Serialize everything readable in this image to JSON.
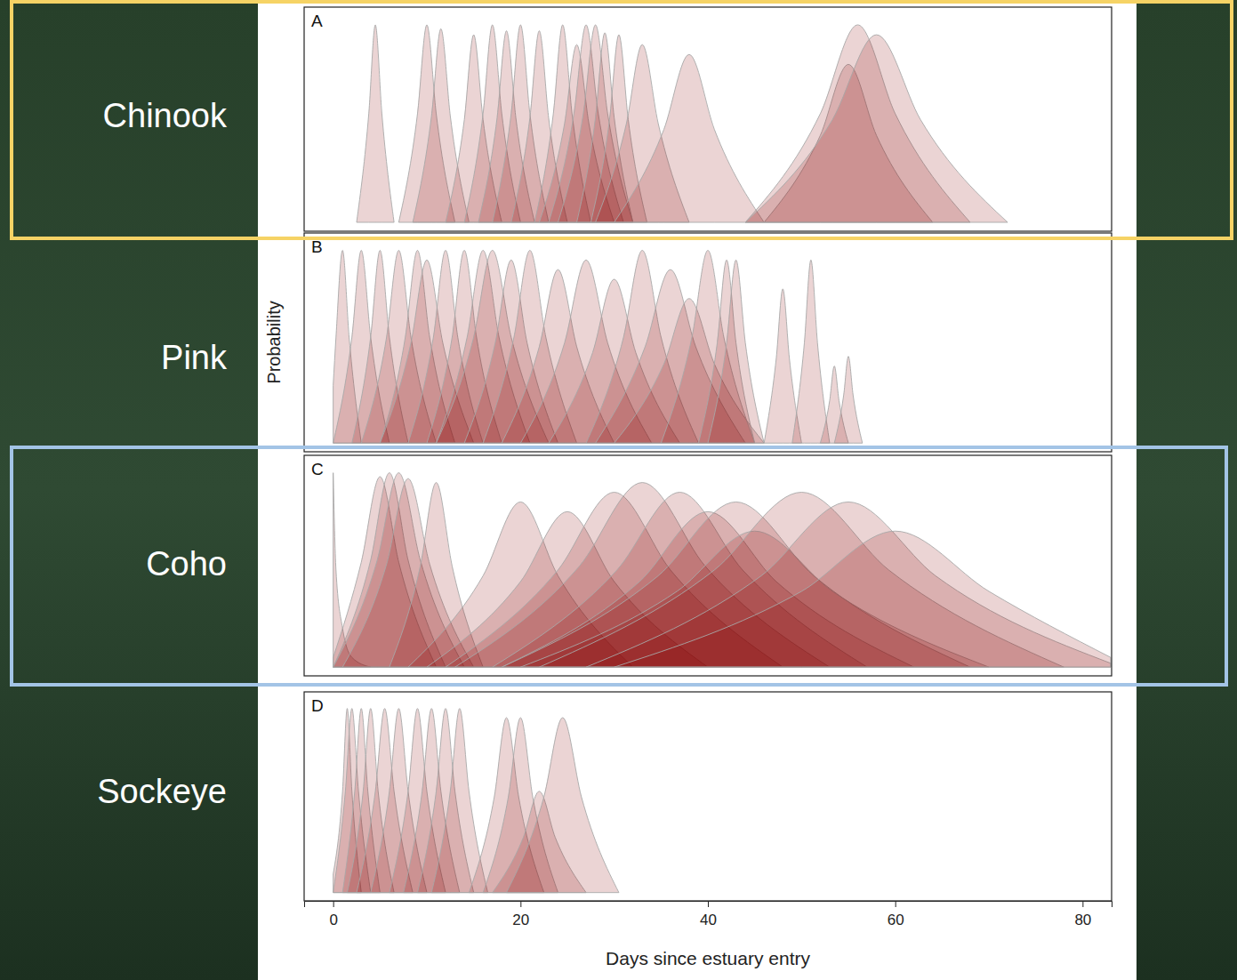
{
  "chart_data": [
    {
      "type": "area",
      "title": "Chinook",
      "subtitle": "A",
      "color": "#8b0000",
      "xlim": [
        -3.1,
        83.1
      ],
      "ylim": [
        -0.045,
        1.09
      ],
      "tick_labels": false,
      "series": [
        {
          "x": [
            2.5,
            3.8,
            4.5,
            5.2,
            6.5
          ],
          "values": [
            0,
            0.55,
            1,
            0.55,
            0
          ]
        },
        {
          "x": [
            7,
            9,
            10,
            11,
            13
          ],
          "values": [
            0,
            0.55,
            1,
            0.55,
            0
          ]
        },
        {
          "x": [
            8.5,
            10.5,
            11.5,
            12.5,
            14.5
          ],
          "values": [
            0,
            0.54,
            0.98,
            0.54,
            0
          ]
        },
        {
          "x": [
            12,
            14,
            15,
            16,
            18
          ],
          "values": [
            0,
            0.52,
            0.95,
            0.52,
            0
          ]
        },
        {
          "x": [
            14,
            16,
            17,
            18,
            20
          ],
          "values": [
            0,
            0.55,
            1,
            0.55,
            0
          ]
        },
        {
          "x": [
            15.5,
            17.5,
            18.5,
            19.5,
            21.5
          ],
          "values": [
            0,
            0.53,
            0.97,
            0.53,
            0
          ]
        },
        {
          "x": [
            17,
            19,
            20,
            21,
            23
          ],
          "values": [
            0,
            0.55,
            1,
            0.55,
            0
          ]
        },
        {
          "x": [
            19,
            21,
            22,
            23,
            25
          ],
          "values": [
            0,
            0.53,
            0.97,
            0.53,
            0
          ]
        },
        {
          "x": [
            21.5,
            23.5,
            24.5,
            25.5,
            27.5
          ],
          "values": [
            0,
            0.55,
            1,
            0.55,
            0
          ]
        },
        {
          "x": [
            22,
            24.7,
            26,
            27.3,
            30
          ],
          "values": [
            0,
            0.5,
            0.9,
            0.5,
            0
          ]
        },
        {
          "x": [
            23,
            25.7,
            27,
            28.3,
            31
          ],
          "values": [
            0,
            0.55,
            1,
            0.55,
            0
          ]
        },
        {
          "x": [
            24,
            26.7,
            28,
            29.3,
            32
          ],
          "values": [
            0,
            0.55,
            1,
            0.55,
            0
          ]
        },
        {
          "x": [
            26,
            28,
            29,
            30,
            32
          ],
          "values": [
            0,
            0.53,
            0.96,
            0.53,
            0
          ]
        },
        {
          "x": [
            27.5,
            29.5,
            30.5,
            31.5,
            33.5
          ],
          "values": [
            0,
            0.52,
            0.95,
            0.52,
            0
          ]
        },
        {
          "x": [
            28,
            31.3,
            33,
            34.7,
            38
          ],
          "values": [
            0,
            0.5,
            0.9,
            0.5,
            0
          ]
        },
        {
          "x": [
            30,
            35.3,
            38,
            40.7,
            46
          ],
          "values": [
            0,
            0.47,
            0.85,
            0.47,
            0
          ]
        },
        {
          "x": [
            46,
            52,
            55,
            58,
            64
          ],
          "values": [
            0,
            0.44,
            0.8,
            0.44,
            0
          ]
        },
        {
          "x": [
            44,
            52,
            56,
            60,
            68
          ],
          "values": [
            0,
            0.55,
            1,
            0.55,
            0
          ]
        },
        {
          "x": [
            44,
            53.3,
            58,
            62.7,
            72
          ],
          "values": [
            0,
            0.52,
            0.95,
            0.52,
            0
          ]
        }
      ]
    },
    {
      "type": "area",
      "title": "Pink",
      "subtitle": "B",
      "y_label": "Probability",
      "color": "#8b0000",
      "xlim": [
        -3.1,
        83.1
      ],
      "ylim": [
        -0.045,
        1.09
      ],
      "tick_labels": false,
      "series": [
        {
          "x": [
            0,
            0.3,
            1,
            1.7,
            3
          ],
          "values": [
            0.3,
            0.55,
            1,
            0.55,
            0
          ]
        },
        {
          "x": [
            0,
            2,
            3,
            4,
            6
          ],
          "values": [
            0,
            0.55,
            1,
            0.55,
            0
          ]
        },
        {
          "x": [
            2,
            4,
            5,
            6,
            8
          ],
          "values": [
            0,
            0.55,
            1,
            0.55,
            0
          ]
        },
        {
          "x": [
            3,
            5.7,
            7,
            8.3,
            11
          ],
          "values": [
            0,
            0.55,
            1,
            0.55,
            0
          ]
        },
        {
          "x": [
            5,
            7.7,
            9,
            10.3,
            13
          ],
          "values": [
            0,
            0.55,
            1,
            0.55,
            0
          ]
        },
        {
          "x": [
            5,
            8.3,
            10,
            11.7,
            15
          ],
          "values": [
            0,
            0.52,
            0.95,
            0.52,
            0
          ]
        },
        {
          "x": [
            8,
            10.7,
            12,
            13.3,
            16
          ],
          "values": [
            0,
            0.55,
            1,
            0.55,
            0
          ]
        },
        {
          "x": [
            10,
            12.7,
            14,
            15.3,
            18
          ],
          "values": [
            0,
            0.55,
            1,
            0.55,
            0
          ]
        },
        {
          "x": [
            11,
            14.3,
            16,
            17.7,
            21
          ],
          "values": [
            0,
            0.55,
            1,
            0.55,
            0
          ]
        },
        {
          "x": [
            11,
            15,
            17,
            19,
            23
          ],
          "values": [
            0,
            0.55,
            1,
            0.55,
            0
          ]
        },
        {
          "x": [
            14,
            17.3,
            19,
            20.7,
            24
          ],
          "values": [
            0,
            0.52,
            0.95,
            0.52,
            0
          ]
        },
        {
          "x": [
            16,
            19.3,
            21,
            22.7,
            26
          ],
          "values": [
            0,
            0.55,
            1,
            0.55,
            0
          ]
        },
        {
          "x": [
            18,
            22,
            24,
            26,
            30
          ],
          "values": [
            0,
            0.5,
            0.9,
            0.5,
            0
          ]
        },
        {
          "x": [
            20,
            24.7,
            27,
            29.3,
            34
          ],
          "values": [
            0,
            0.52,
            0.95,
            0.52,
            0
          ]
        },
        {
          "x": [
            23,
            27.7,
            30,
            32.3,
            37
          ],
          "values": [
            0,
            0.47,
            0.85,
            0.47,
            0
          ]
        },
        {
          "x": [
            27,
            31,
            33,
            35,
            39
          ],
          "values": [
            0,
            0.55,
            1,
            0.55,
            0
          ]
        },
        {
          "x": [
            28,
            33.3,
            36,
            38.7,
            44
          ],
          "values": [
            0,
            0.5,
            0.9,
            0.5,
            0
          ]
        },
        {
          "x": [
            30,
            35.3,
            38,
            40.7,
            46
          ],
          "values": [
            0,
            0.41,
            0.75,
            0.41,
            0
          ]
        },
        {
          "x": [
            35,
            38.3,
            40,
            41.7,
            45
          ],
          "values": [
            0,
            0.55,
            1,
            0.55,
            0
          ]
        },
        {
          "x": [
            39,
            41,
            42,
            43,
            45
          ],
          "values": [
            0,
            0.52,
            0.95,
            0.52,
            0
          ]
        },
        {
          "x": [
            40,
            42,
            43,
            44,
            46
          ],
          "values": [
            0,
            0.52,
            0.95,
            0.52,
            0
          ]
        },
        {
          "x": [
            46,
            47.3,
            48,
            48.7,
            50
          ],
          "values": [
            0,
            0.44,
            0.8,
            0.44,
            0
          ]
        },
        {
          "x": [
            49,
            50.3,
            51,
            51.7,
            53
          ],
          "values": [
            0,
            0.52,
            0.95,
            0.52,
            0
          ]
        },
        {
          "x": [
            52,
            53,
            53.5,
            54,
            55
          ],
          "values": [
            0,
            0.22,
            0.4,
            0.22,
            0
          ]
        },
        {
          "x": [
            53.5,
            54.5,
            55,
            55.5,
            56.5
          ],
          "values": [
            0,
            0.25,
            0.45,
            0.25,
            0
          ]
        }
      ]
    },
    {
      "type": "area",
      "title": "Coho",
      "subtitle": "C",
      "color": "#8b0000",
      "xlim": [
        -3.1,
        83.1
      ],
      "ylim": [
        -0.045,
        1.09
      ],
      "tick_labels": false,
      "series": [
        {
          "x": [
            0,
            0.3,
            1,
            2,
            4
          ],
          "values": [
            1,
            0.5,
            0.2,
            0.05,
            0
          ]
        },
        {
          "x": [
            0,
            3,
            5,
            7,
            11
          ],
          "values": [
            0.05,
            0.54,
            0.98,
            0.54,
            0
          ]
        },
        {
          "x": [
            0,
            4,
            6,
            8,
            12
          ],
          "values": [
            0,
            0.55,
            1,
            0.55,
            0
          ]
        },
        {
          "x": [
            0,
            4.7,
            7,
            9.3,
            14
          ],
          "values": [
            0,
            0.55,
            1,
            0.55,
            0
          ]
        },
        {
          "x": [
            1,
            5.7,
            8,
            10.3,
            15
          ],
          "values": [
            0,
            0.53,
            0.97,
            0.53,
            0
          ]
        },
        {
          "x": [
            6,
            9.3,
            11,
            12.7,
            16
          ],
          "values": [
            0,
            0.52,
            0.95,
            0.52,
            0
          ]
        },
        {
          "x": [
            8,
            16,
            20,
            24,
            32
          ],
          "values": [
            0,
            0.47,
            0.85,
            0.47,
            0
          ]
        },
        {
          "x": [
            10,
            20,
            25,
            30,
            40
          ],
          "values": [
            0,
            0.44,
            0.8,
            0.44,
            0
          ]
        },
        {
          "x": [
            12,
            24,
            30,
            36,
            48
          ],
          "values": [
            0,
            0.5,
            0.9,
            0.5,
            0
          ]
        },
        {
          "x": [
            13,
            26.3,
            33,
            39.7,
            53
          ],
          "values": [
            0,
            0.52,
            0.95,
            0.52,
            0
          ]
        },
        {
          "x": [
            17,
            30.3,
            37,
            43.7,
            57
          ],
          "values": [
            0,
            0.5,
            0.9,
            0.5,
            0
          ]
        },
        {
          "x": [
            18,
            32.7,
            40,
            47.3,
            62
          ],
          "values": [
            0,
            0.44,
            0.8,
            0.44,
            0
          ]
        },
        {
          "x": [
            18,
            34.7,
            43,
            51.3,
            68
          ],
          "values": [
            0,
            0.47,
            0.85,
            0.47,
            0
          ]
        },
        {
          "x": [
            20,
            36.7,
            45,
            53.3,
            70
          ],
          "values": [
            0,
            0.39,
            0.7,
            0.39,
            0
          ]
        },
        {
          "x": [
            22,
            40.7,
            50,
            59.3,
            78
          ],
          "values": [
            0,
            0.5,
            0.9,
            0.5,
            0
          ]
        },
        {
          "x": [
            27,
            45.7,
            55,
            64.3,
            83
          ],
          "values": [
            0,
            0.47,
            0.85,
            0.47,
            0.02
          ]
        },
        {
          "x": [
            30,
            50,
            60,
            70,
            83
          ],
          "values": [
            0,
            0.39,
            0.7,
            0.39,
            0.05
          ]
        }
      ]
    },
    {
      "type": "area",
      "title": "Sockeye",
      "subtitle": "D",
      "x_label": "Days since estuary entry",
      "color": "#8b0000",
      "xlim": [
        -3.1,
        83.1
      ],
      "ylim": [
        -0.045,
        1.09
      ],
      "xticks": [
        0,
        20,
        40,
        60,
        80
      ],
      "tick_labels": "x",
      "series": [
        {
          "x": [
            0,
            1,
            1.5,
            2,
            3
          ],
          "values": [
            0.1,
            0.55,
            1,
            0.55,
            0
          ]
        },
        {
          "x": [
            0,
            1.3,
            2,
            2.7,
            4
          ],
          "values": [
            0,
            0.55,
            1,
            0.55,
            0
          ]
        },
        {
          "x": [
            1,
            2.3,
            3,
            3.7,
            5
          ],
          "values": [
            0,
            0.55,
            1,
            0.55,
            0
          ]
        },
        {
          "x": [
            1.5,
            3.2,
            4,
            4.8,
            6.5
          ],
          "values": [
            0,
            0.55,
            1,
            0.55,
            0
          ]
        },
        {
          "x": [
            2.5,
            4.5,
            5.5,
            6.5,
            8.5
          ],
          "values": [
            0,
            0.55,
            1,
            0.55,
            0
          ]
        },
        {
          "x": [
            4,
            6,
            7,
            8,
            10
          ],
          "values": [
            0,
            0.55,
            1,
            0.55,
            0
          ]
        },
        {
          "x": [
            6,
            8,
            9,
            10,
            12
          ],
          "values": [
            0,
            0.55,
            1,
            0.55,
            0
          ]
        },
        {
          "x": [
            7.5,
            9.5,
            10.5,
            11.5,
            13.5
          ],
          "values": [
            0,
            0.55,
            1,
            0.55,
            0
          ]
        },
        {
          "x": [
            9,
            11,
            12,
            13,
            15
          ],
          "values": [
            0,
            0.55,
            1,
            0.55,
            0
          ]
        },
        {
          "x": [
            10.5,
            12.5,
            13.5,
            14.5,
            16.5
          ],
          "values": [
            0,
            0.55,
            1,
            0.55,
            0
          ]
        },
        {
          "x": [
            14.5,
            17.2,
            18.5,
            19.8,
            22.5
          ],
          "values": [
            0,
            0.52,
            0.95,
            0.52,
            0
          ]
        },
        {
          "x": [
            16,
            18.7,
            20,
            21.3,
            24
          ],
          "values": [
            0,
            0.52,
            0.95,
            0.52,
            0
          ]
        },
        {
          "x": [
            17,
            20.3,
            22,
            23.7,
            27
          ],
          "values": [
            0,
            0.3,
            0.55,
            0.3,
            0
          ]
        },
        {
          "x": [
            18.5,
            22.5,
            24.5,
            26.5,
            30.5
          ],
          "values": [
            0,
            0.52,
            0.95,
            0.52,
            0
          ]
        }
      ]
    }
  ]
}
